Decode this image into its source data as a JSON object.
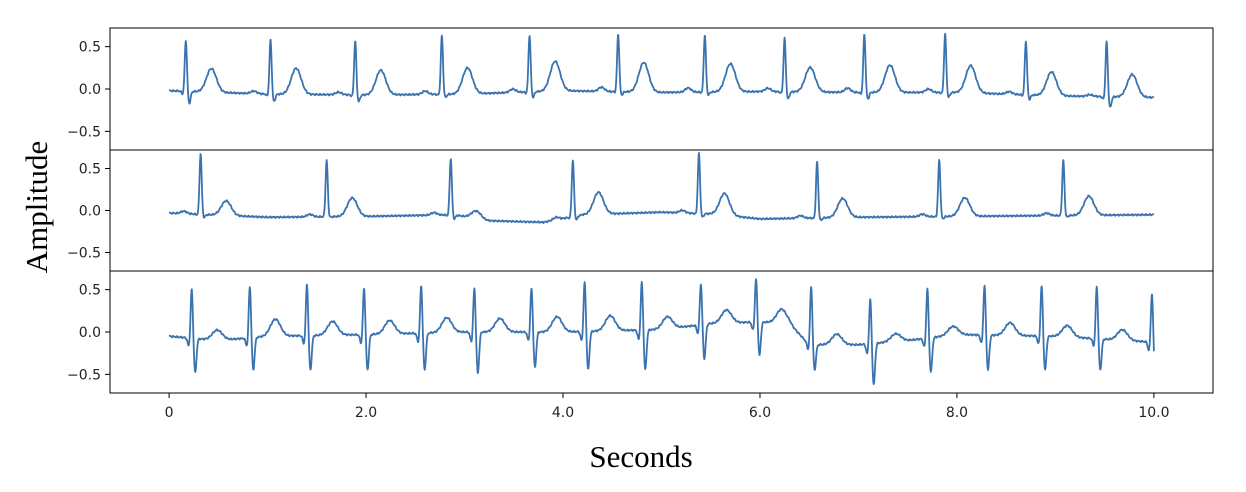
{
  "chart_data": {
    "type": "line",
    "xlabel": "Seconds",
    "ylabel": "Amplitude",
    "xlim": [
      -0.6,
      10.6
    ],
    "x_ticks": [
      {
        "value": 0,
        "label": "0"
      },
      {
        "value": 2,
        "label": "2.0"
      },
      {
        "value": 4,
        "label": "4.0"
      },
      {
        "value": 6,
        "label": "6.0"
      },
      {
        "value": 8,
        "label": "8.0"
      },
      {
        "value": 10,
        "label": "10.0"
      }
    ],
    "y_ticks": [
      {
        "value": 0.5,
        "label": "0.5"
      },
      {
        "value": 0.0,
        "label": "0.0"
      },
      {
        "value": -0.5,
        "label": "−0.5"
      }
    ],
    "line_color": "#3a73b0",
    "grid": false,
    "panels": [
      {
        "ylim": [
          -0.72,
          0.72
        ],
        "baseline": [
          [
            0,
            -0.02
          ],
          [
            1,
            -0.06
          ],
          [
            2,
            -0.07
          ],
          [
            3,
            -0.06
          ],
          [
            4,
            -0.02
          ],
          [
            5,
            -0.04
          ],
          [
            6,
            -0.03
          ],
          [
            7,
            -0.04
          ],
          [
            8,
            -0.04
          ],
          [
            9,
            -0.08
          ],
          [
            10,
            -0.1
          ]
        ],
        "beats": [
          {
            "t": 0.17,
            "r": 0.58,
            "s": -0.17,
            "p": 0.0,
            "tw": 0.27
          },
          {
            "t": 1.03,
            "r": 0.58,
            "s": -0.15,
            "p": 0.03,
            "tw": 0.29
          },
          {
            "t": 1.89,
            "r": 0.57,
            "s": -0.15,
            "p": 0.03,
            "tw": 0.27
          },
          {
            "t": 2.77,
            "r": 0.63,
            "s": -0.1,
            "p": 0.04,
            "tw": 0.29
          },
          {
            "t": 3.66,
            "r": 0.64,
            "s": -0.1,
            "p": 0.04,
            "tw": 0.34
          },
          {
            "t": 4.56,
            "r": 0.65,
            "s": -0.07,
            "p": 0.05,
            "tw": 0.34
          },
          {
            "t": 5.44,
            "r": 0.64,
            "s": -0.07,
            "p": 0.05,
            "tw": 0.32
          },
          {
            "t": 6.25,
            "r": 0.6,
            "s": -0.12,
            "p": 0.04,
            "tw": 0.28
          },
          {
            "t": 7.06,
            "r": 0.65,
            "s": -0.12,
            "p": 0.05,
            "tw": 0.31
          },
          {
            "t": 7.88,
            "r": 0.65,
            "s": -0.1,
            "p": 0.04,
            "tw": 0.31
          },
          {
            "t": 8.7,
            "r": 0.57,
            "s": -0.12,
            "p": 0.03,
            "tw": 0.26
          },
          {
            "t": 9.52,
            "r": 0.56,
            "s": -0.22,
            "p": 0.02,
            "tw": 0.24
          }
        ]
      },
      {
        "ylim": [
          -0.72,
          0.72
        ],
        "baseline": [
          [
            0,
            -0.03
          ],
          [
            1,
            -0.08
          ],
          [
            2,
            -0.07
          ],
          [
            2.9,
            -0.05
          ],
          [
            3.2,
            -0.12
          ],
          [
            3.8,
            -0.14
          ],
          [
            4.2,
            -0.05
          ],
          [
            5,
            -0.02
          ],
          [
            5.5,
            -0.04
          ],
          [
            6,
            -0.1
          ],
          [
            7,
            -0.08
          ],
          [
            8,
            -0.07
          ],
          [
            9,
            -0.06
          ],
          [
            10,
            -0.05
          ]
        ],
        "beats": [
          {
            "t": 0.32,
            "r": 0.68,
            "s": -0.08,
            "p": 0.03,
            "tw": 0.16
          },
          {
            "t": 1.6,
            "r": 0.6,
            "s": -0.08,
            "p": 0.03,
            "tw": 0.2
          },
          {
            "t": 2.86,
            "r": 0.62,
            "s": -0.1,
            "p": 0.03,
            "tw": 0.08
          },
          {
            "t": 4.1,
            "r": 0.6,
            "s": -0.12,
            "p": 0.03,
            "tw": 0.24
          },
          {
            "t": 5.38,
            "r": 0.68,
            "s": -0.08,
            "p": 0.03,
            "tw": 0.25
          },
          {
            "t": 6.58,
            "r": 0.58,
            "s": -0.12,
            "p": 0.03,
            "tw": 0.2
          },
          {
            "t": 7.82,
            "r": 0.6,
            "s": -0.1,
            "p": 0.03,
            "tw": 0.2
          },
          {
            "t": 9.08,
            "r": 0.6,
            "s": -0.08,
            "p": 0.03,
            "tw": 0.21
          }
        ]
      },
      {
        "ylim": [
          -0.72,
          0.72
        ],
        "baseline": [
          [
            0,
            -0.05
          ],
          [
            0.5,
            -0.1
          ],
          [
            1,
            -0.05
          ],
          [
            2,
            -0.03
          ],
          [
            3,
            0.0
          ],
          [
            4,
            0.0
          ],
          [
            5,
            0.03
          ],
          [
            5.5,
            0.1
          ],
          [
            6,
            0.12
          ],
          [
            6.3,
            0.1
          ],
          [
            6.5,
            -0.15
          ],
          [
            7,
            -0.15
          ],
          [
            7.5,
            -0.1
          ],
          [
            8,
            -0.03
          ],
          [
            9,
            -0.05
          ],
          [
            10,
            -0.12
          ]
        ],
        "beats": [
          {
            "t": 0.23,
            "r": 0.52,
            "s": -0.48,
            "tw": 0.1
          },
          {
            "t": 0.82,
            "r": 0.55,
            "s": -0.45,
            "tw": 0.18
          },
          {
            "t": 1.4,
            "r": 0.58,
            "s": -0.45,
            "tw": 0.15
          },
          {
            "t": 1.98,
            "r": 0.53,
            "s": -0.45,
            "tw": 0.15
          },
          {
            "t": 2.56,
            "r": 0.56,
            "s": -0.45,
            "tw": 0.17
          },
          {
            "t": 3.1,
            "r": 0.53,
            "s": -0.49,
            "tw": 0.16
          },
          {
            "t": 3.68,
            "r": 0.53,
            "s": -0.42,
            "tw": 0.18
          },
          {
            "t": 4.22,
            "r": 0.6,
            "s": -0.45,
            "tw": 0.18
          },
          {
            "t": 4.8,
            "r": 0.6,
            "s": -0.45,
            "tw": 0.15
          },
          {
            "t": 5.4,
            "r": 0.58,
            "s": -0.32,
            "tw": 0.18
          },
          {
            "t": 5.96,
            "r": 0.64,
            "s": -0.28,
            "tw": 0.2
          },
          {
            "t": 6.52,
            "r": 0.55,
            "s": -0.45,
            "tw": 0.08
          },
          {
            "t": 7.12,
            "r": 0.4,
            "s": -0.63,
            "tw": 0.05
          },
          {
            "t": 7.7,
            "r": 0.52,
            "s": -0.48,
            "tw": 0.08
          },
          {
            "t": 8.28,
            "r": 0.56,
            "s": -0.45,
            "tw": 0.14
          },
          {
            "t": 8.86,
            "r": 0.56,
            "s": -0.45,
            "tw": 0.12
          },
          {
            "t": 9.42,
            "r": 0.55,
            "s": -0.45,
            "tw": 0.1
          },
          {
            "t": 9.98,
            "r": 0.46,
            "s": -0.55,
            "tw": 0.0
          }
        ]
      }
    ]
  }
}
